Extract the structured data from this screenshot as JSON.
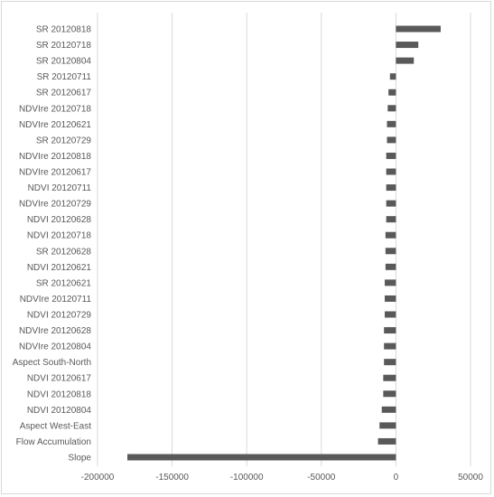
{
  "chart_data": {
    "type": "bar",
    "orientation": "horizontal",
    "categories": [
      "SR 20120818",
      "SR 20120718",
      "SR 20120804",
      "SR 20120711",
      "SR 20120617",
      "NDVIre 20120718",
      "NDVIre 20120621",
      "SR 20120729",
      "NDVIre 20120818",
      "NDVIre 20120617",
      "NDVI 20120711",
      "NDVIre 20120729",
      "NDVI 20120628",
      "NDVI 20120718",
      "SR 20120628",
      "NDVI 20120621",
      "SR 20120621",
      "NDVIre 20120711",
      "NDVI 20120729",
      "NDVIre 20120628",
      "NDVIre 20120804",
      "Aspect South-North",
      "NDVI 20120617",
      "NDVI 20120818",
      "NDVI 20120804",
      "Aspect West-East",
      "Flow Accumulation",
      "Slope"
    ],
    "values": [
      30000,
      15000,
      12000,
      -4000,
      -5000,
      -5500,
      -6000,
      -6000,
      -6500,
      -6500,
      -6500,
      -6500,
      -6500,
      -7000,
      -7000,
      -7000,
      -7500,
      -7500,
      -7500,
      -8000,
      -8000,
      -8000,
      -8500,
      -8500,
      -9500,
      -11000,
      -12000,
      -180000
    ],
    "xlim": [
      -200000,
      50000
    ],
    "xticks": [
      -200000,
      -150000,
      -100000,
      -50000,
      0,
      50000
    ],
    "xtick_labels": [
      "-200000",
      "-150000",
      "-100000",
      "-50000",
      "0",
      "50000"
    ],
    "grid": "vertical",
    "legend": "none",
    "colors": {
      "bar": "#595959",
      "grid": "#d9d9d9",
      "text": "#595959"
    }
  }
}
